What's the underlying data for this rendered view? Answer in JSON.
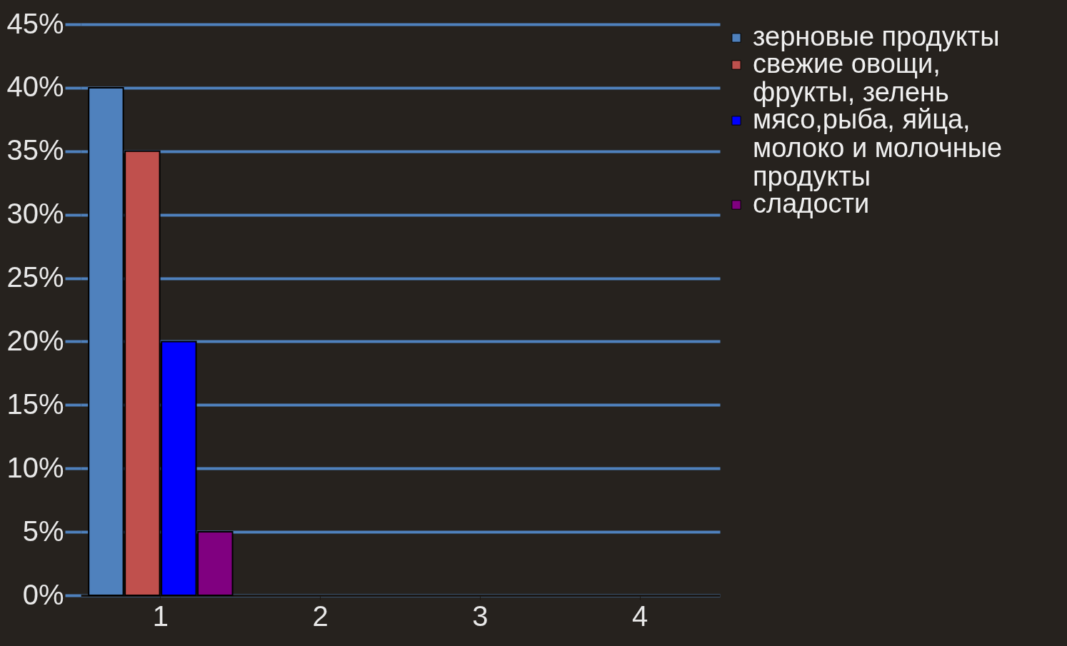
{
  "chart_data": {
    "type": "bar",
    "categories": [
      "1",
      "2",
      "3",
      "4"
    ],
    "series": [
      {
        "name": "зерновые продукты",
        "color": "#4f81bd",
        "values": [
          40,
          0,
          0,
          0
        ]
      },
      {
        "name": "свежие овощи, фрукты, зелень",
        "color": "#c0504d",
        "values": [
          35,
          0,
          0,
          0
        ]
      },
      {
        "name": "мясо,рыба, яйца, молоко и молочные продукты",
        "color": "#0000ff",
        "values": [
          20,
          0,
          0,
          0
        ]
      },
      {
        "name": "сладости",
        "color": "#800080",
        "values": [
          5,
          0,
          0,
          0
        ]
      }
    ],
    "ylim": [
      0,
      45
    ],
    "yticks": [
      {
        "value": 0,
        "label": "0%"
      },
      {
        "value": 5,
        "label": "5%"
      },
      {
        "value": 10,
        "label": "10%"
      },
      {
        "value": 15,
        "label": "15%"
      },
      {
        "value": 20,
        "label": "20%"
      },
      {
        "value": 25,
        "label": "25%"
      },
      {
        "value": 30,
        "label": "30%"
      },
      {
        "value": 35,
        "label": "35%"
      },
      {
        "value": 40,
        "label": "40%"
      },
      {
        "value": 45,
        "label": "45%"
      }
    ],
    "grid": "y",
    "legend": "right"
  }
}
